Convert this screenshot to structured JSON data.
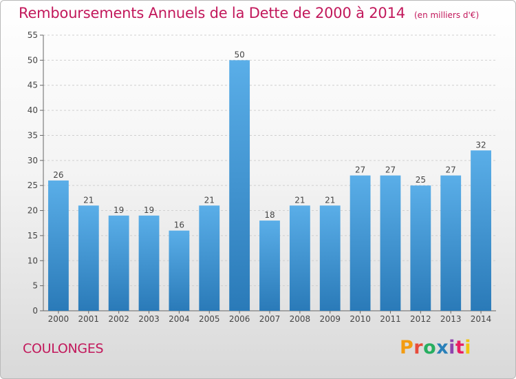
{
  "title": "Remboursements Annuels de la Dette de 2000 à 2014",
  "unit": "(en milliers d'€)",
  "commune": "COULONGES",
  "brand": "Proxiti",
  "brand_colors": [
    "#f39c12",
    "#e74c3c",
    "#27ae60",
    "#2980b9",
    "#8e44ad",
    "#e91e63",
    "#f1c40f"
  ],
  "colors": {
    "bar_top": "#5aaee8",
    "bar_bottom": "#2a7ab8",
    "accent": "#c2185b",
    "grid": "#d0d0d0"
  },
  "chart_data": {
    "type": "bar",
    "categories": [
      "2000",
      "2001",
      "2002",
      "2003",
      "2004",
      "2005",
      "2006",
      "2007",
      "2008",
      "2009",
      "2010",
      "2011",
      "2012",
      "2013",
      "2014"
    ],
    "values": [
      26,
      21,
      19,
      19,
      16,
      21,
      50,
      18,
      21,
      21,
      27,
      27,
      25,
      27,
      32
    ],
    "ylim": [
      0,
      55
    ],
    "yticks": [
      0,
      5,
      10,
      15,
      20,
      25,
      30,
      35,
      40,
      45,
      50,
      55
    ],
    "grid": true
  }
}
